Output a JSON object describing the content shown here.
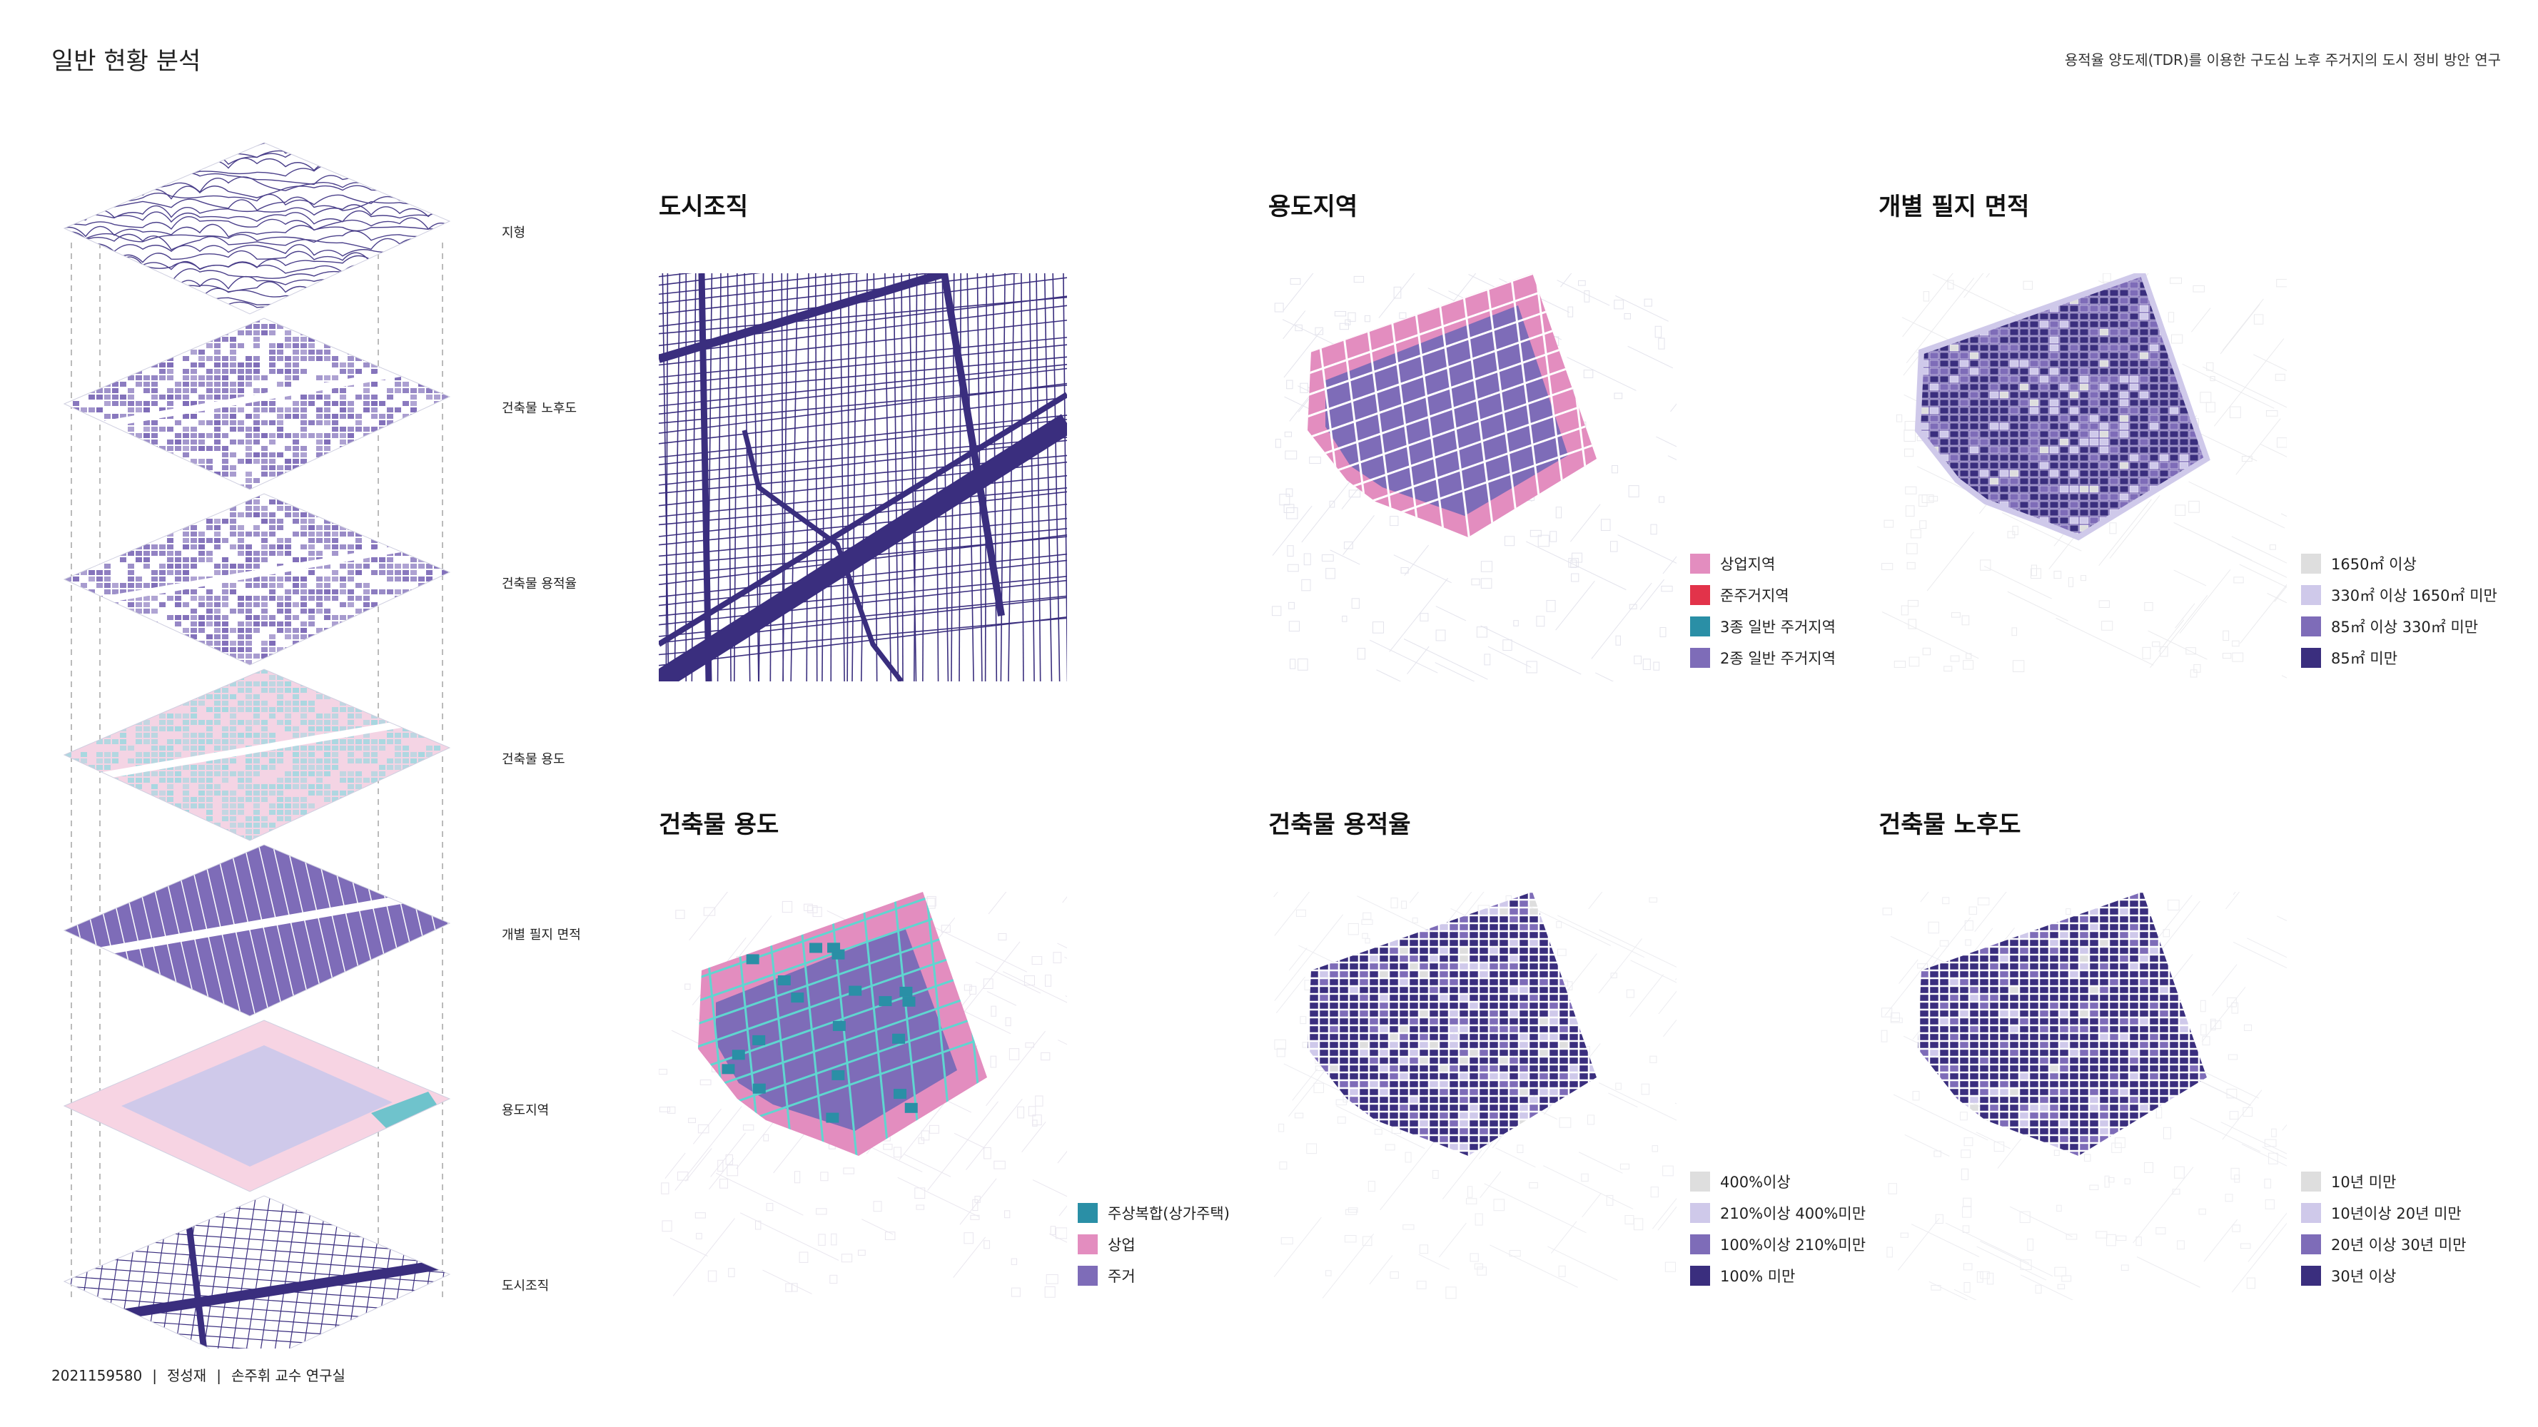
{
  "header": {
    "page_title": "일반 현황 분석",
    "project_title": "용적율 양도제(TDR)를 이용한 구도심 노후 주거지의 도시 정비 방안 연구"
  },
  "footer": {
    "student_id": "2021159580",
    "student_name": "정성재",
    "lab": "손주휘 교수 연구실",
    "separator": "|"
  },
  "stack": {
    "layers": [
      {
        "label": "지형"
      },
      {
        "label": "건축물 노후도"
      },
      {
        "label": "건축물 용적율"
      },
      {
        "label": "건축물 용도"
      },
      {
        "label": "개별 필지 면적"
      },
      {
        "label": "용도지역"
      },
      {
        "label": "도시조직"
      }
    ]
  },
  "panels": {
    "urban_fabric": {
      "title": "도시조직"
    },
    "zoning": {
      "title": "용도지역",
      "legend": [
        {
          "label": "상업지역",
          "color": "#E38DBF"
        },
        {
          "label": "준주거지역",
          "color": "#E2334A"
        },
        {
          "label": "3종 일반 주거지역",
          "color": "#2A8FA6"
        },
        {
          "label": "2종 일반 주거지역",
          "color": "#7E6CB8"
        }
      ]
    },
    "lot_area": {
      "title": "개별 필지 면적",
      "legend": [
        {
          "label": "1650㎡ 이상",
          "color": "#DEDEDE"
        },
        {
          "label": "330㎡ 이상 1650㎡ 미만",
          "color": "#CFC9EA"
        },
        {
          "label": "85㎡ 이상 330㎡ 미만",
          "color": "#7E6CB8"
        },
        {
          "label": "85㎡ 미만",
          "color": "#3A2E7E"
        }
      ]
    },
    "building_use": {
      "title": "건축물 용도",
      "legend": [
        {
          "label": "주상복합(상가주택)",
          "color": "#2A8FA6"
        },
        {
          "label": "상업",
          "color": "#E38DBF"
        },
        {
          "label": "주거",
          "color": "#7E6CB8"
        }
      ]
    },
    "far": {
      "title": "건축물 용적율",
      "legend": [
        {
          "label": "400%이상",
          "color": "#DEDEDE"
        },
        {
          "label": "210%이상 400%미만",
          "color": "#CFC9EA"
        },
        {
          "label": "100%이상 210%미만",
          "color": "#7E6CB8"
        },
        {
          "label": "100% 미만",
          "color": "#3A2E7E"
        }
      ]
    },
    "age": {
      "title": "건축물 노후도",
      "legend": [
        {
          "label": "10년 미만",
          "color": "#DEDEDE"
        },
        {
          "label": "10년이상 20년 미만",
          "color": "#CFC9EA"
        },
        {
          "label": "20년 이상 30년 미만",
          "color": "#7E6CB8"
        },
        {
          "label": "30년 이상",
          "color": "#3A2E7E"
        }
      ]
    }
  }
}
